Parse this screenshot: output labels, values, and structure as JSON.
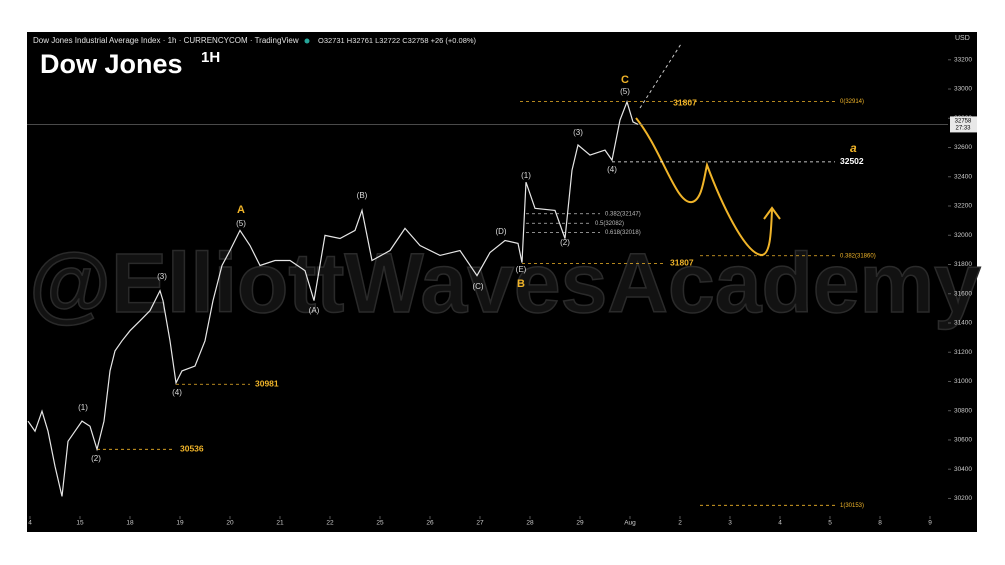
{
  "chart_data": {
    "type": "line",
    "header": "Dow Jones Industrial Average Index · 1h · CURRENCYCOM · TradingView",
    "ohlc": "O32731 H32761 L32722 C32758 +26 (+0.08%)",
    "title": "Dow Jones",
    "subtitle": "1H",
    "watermark": "@ElliottWavesAcademy",
    "currency": "USD",
    "last_price": 32758,
    "countdown": "27:33",
    "color": "#e6e6e6",
    "xlim": [
      -0.06,
      18.36
    ],
    "ylim": [
      30080,
      33390
    ],
    "xticks": [
      {
        "value": 0,
        "label": "4"
      },
      {
        "value": 1,
        "label": "15"
      },
      {
        "value": 2,
        "label": "18"
      },
      {
        "value": 3,
        "label": "19"
      },
      {
        "value": 4,
        "label": "20"
      },
      {
        "value": 5,
        "label": "21"
      },
      {
        "value": 6,
        "label": "22"
      },
      {
        "value": 7,
        "label": "25"
      },
      {
        "value": 8,
        "label": "26"
      },
      {
        "value": 9,
        "label": "27"
      },
      {
        "value": 10,
        "label": "28"
      },
      {
        "value": 11,
        "label": "29"
      },
      {
        "value": 12,
        "label": "Aug"
      },
      {
        "value": 13,
        "label": "2"
      },
      {
        "value": 14,
        "label": "3"
      },
      {
        "value": 15,
        "label": "4"
      },
      {
        "value": 16,
        "label": "5"
      },
      {
        "value": 17,
        "label": "8"
      },
      {
        "value": 18,
        "label": "9"
      }
    ],
    "yticks": [
      30200,
      30400,
      30600,
      30800,
      31000,
      31200,
      31400,
      31600,
      31800,
      32000,
      32200,
      32400,
      32600,
      32800,
      33000,
      33200
    ],
    "x": [
      -0.04,
      0.1,
      0.24,
      0.36,
      0.5,
      0.64,
      0.76,
      0.9,
      1.04,
      1.2,
      1.34,
      1.48,
      1.6,
      1.7,
      1.84,
      2.0,
      2.2,
      2.4,
      2.6,
      2.66,
      2.8,
      2.92,
      3.04,
      3.3,
      3.5,
      3.66,
      3.84,
      4.0,
      4.2,
      4.4,
      4.6,
      4.9,
      5.2,
      5.5,
      5.68,
      5.9,
      6.2,
      6.5,
      6.64,
      6.84,
      7.2,
      7.5,
      7.8,
      8.2,
      8.6,
      8.94,
      9.2,
      9.5,
      9.76,
      9.84,
      9.92,
      10.1,
      10.5,
      10.7,
      10.84,
      10.96,
      11.2,
      11.5,
      11.64,
      11.8,
      11.94,
      12.06,
      12.16
    ],
    "values": [
      30729,
      30660,
      30797,
      30660,
      30420,
      30214,
      30591,
      30660,
      30729,
      30694,
      30536,
      30729,
      31072,
      31209,
      31278,
      31347,
      31415,
      31484,
      31621,
      31553,
      31278,
      30990,
      31072,
      31106,
      31278,
      31553,
      31793,
      31896,
      32033,
      31930,
      31793,
      31827,
      31827,
      31758,
      31553,
      31999,
      31978,
      32033,
      32170,
      31827,
      31896,
      32047,
      31930,
      31862,
      31896,
      31724,
      31882,
      31964,
      31944,
      31813,
      32363,
      32184,
      32170,
      31978,
      32445,
      32617,
      32548,
      32582,
      32514,
      32788,
      32912,
      32775,
      32758
    ],
    "levels": [
      {
        "value": 30536,
        "from": 1.34,
        "to": 2.9,
        "label": "30536",
        "color": "#f0b429"
      },
      {
        "value": 30981,
        "from": 2.92,
        "to": 4.4,
        "label": "30981",
        "color": "#f0b429"
      },
      {
        "value": 31807,
        "from": 9.84,
        "to": 12.7,
        "label": "31807",
        "color": "#f0b429"
      },
      {
        "value": 32502,
        "from": 11.64,
        "to": 16.1,
        "label": "32502",
        "color": "#ffffff"
      },
      {
        "value": 32914,
        "from": 9.8,
        "to": 16.1,
        "label": "0(32914)",
        "color": "#f0b429"
      },
      {
        "value": 31860,
        "from": 13.4,
        "to": 16.1,
        "label": "0.382(31860)",
        "color": "#f0b429"
      },
      {
        "value": 30153,
        "from": 13.4,
        "to": 16.1,
        "label": "1(30153)",
        "color": "#f0b429"
      },
      {
        "value": 32147,
        "from": 9.92,
        "to": 11.4,
        "label": "0.382(32147)",
        "color": "#bbbbbb"
      },
      {
        "value": 32082,
        "from": 9.92,
        "to": 11.2,
        "label": "0.5(32082)",
        "color": "#bbbbbb"
      },
      {
        "value": 32018,
        "from": 9.92,
        "to": 11.4,
        "label": "0.618(32018)",
        "color": "#bbbbbb"
      }
    ],
    "annotations": [
      "(1)",
      "(2)",
      "(3)",
      "(4)",
      "(5)",
      "A",
      "(A)",
      "(B)",
      "(C)",
      "(D)",
      "(E)",
      "B",
      "(1)",
      "(2)",
      "(3)",
      "(4)",
      "(5)",
      "C",
      "31807"
    ]
  }
}
